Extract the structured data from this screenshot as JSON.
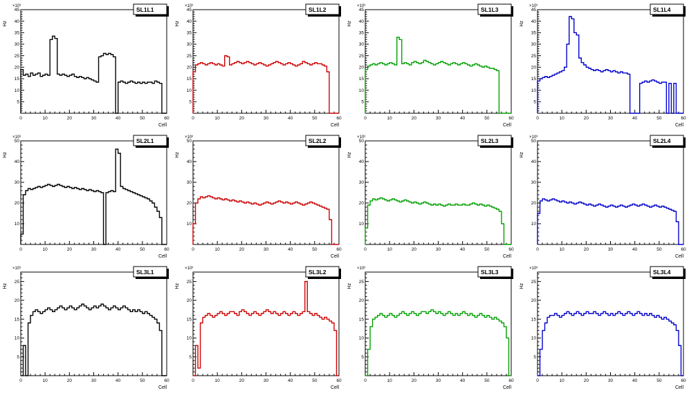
{
  "page": {
    "background": "#ffffff",
    "grid": {
      "rows": 3,
      "cols": 4
    }
  },
  "axis_labels": {
    "y_unit": "Hz",
    "x_unit": "Cell",
    "scale": "×10³"
  },
  "chart_data": [
    {
      "type": "line",
      "title": "SL1L1",
      "color": "#000000",
      "xlabel": "Cell",
      "ylabel": "Hz",
      "scale_label": "×10³",
      "xlim": [
        0,
        60
      ],
      "ylim": [
        0,
        45
      ],
      "xtick_step": 10,
      "x_minor_step": 2,
      "ytick_step": 5,
      "bins": [
        19,
        16.5,
        17,
        16,
        17.5,
        16.5,
        17,
        17.5,
        16,
        16.5,
        17,
        16.5,
        32,
        33.5,
        32.5,
        17,
        16.5,
        17,
        16.5,
        16,
        16.5,
        17,
        16,
        15.5,
        16,
        15.5,
        15,
        15.5,
        15,
        14.5,
        14,
        13.5,
        24.5,
        25,
        26,
        25.5,
        26,
        25.5,
        24.5,
        0,
        13.5,
        14,
        13.5,
        13,
        13.5,
        14,
        13.5,
        13,
        13.5,
        13,
        13.5,
        13,
        13.5,
        13.5,
        13,
        14,
        13.5,
        13,
        0,
        0
      ]
    },
    {
      "type": "line",
      "title": "SL1L2",
      "color": "#cc0000",
      "xlabel": "Cell",
      "ylabel": "Hz",
      "scale_label": "×10³",
      "xlim": [
        0,
        60
      ],
      "ylim": [
        0,
        45
      ],
      "xtick_step": 10,
      "x_minor_step": 2,
      "ytick_step": 5,
      "bins": [
        18,
        21,
        21.5,
        22,
        21.5,
        21,
        21.5,
        22,
        21.5,
        21,
        21.5,
        21,
        20.5,
        25,
        24.5,
        21,
        21.5,
        22,
        22.5,
        22,
        21.5,
        22,
        22.5,
        22,
        21.5,
        21,
        21.5,
        22,
        21.5,
        21,
        20.5,
        21,
        21.5,
        22,
        22.5,
        22,
        21.5,
        21,
        21.5,
        22,
        21.5,
        21,
        20.5,
        21,
        21.5,
        22.5,
        22,
        21.5,
        21,
        21.5,
        22,
        21.5,
        21.5,
        21,
        20.5,
        18,
        0,
        0,
        0,
        0
      ]
    },
    {
      "type": "line",
      "title": "SL1L3",
      "color": "#00a000",
      "xlabel": "Cell",
      "ylabel": "Hz",
      "scale_label": "×10³",
      "xlim": [
        0,
        60
      ],
      "ylim": [
        0,
        45
      ],
      "xtick_step": 10,
      "x_minor_step": 2,
      "ytick_step": 5,
      "bins": [
        19,
        20.5,
        21,
        21.5,
        21,
        21.5,
        22,
        21.5,
        21,
        21.5,
        22,
        21.5,
        21,
        33,
        32,
        21.5,
        22,
        21.5,
        21,
        22,
        22.5,
        22,
        21.5,
        22,
        23,
        22.5,
        22,
        21.5,
        21,
        21.5,
        22,
        22.5,
        22,
        21.5,
        21,
        21.5,
        22,
        21.5,
        21,
        21.5,
        22,
        21.5,
        21,
        20.5,
        21,
        21.5,
        21,
        20.5,
        20,
        20.5,
        20,
        19.5,
        19.5,
        19,
        18.5,
        0,
        0,
        0,
        0,
        0
      ]
    },
    {
      "type": "line",
      "title": "SL1L4",
      "color": "#0000cc",
      "xlabel": "Cell",
      "ylabel": "Hz",
      "scale_label": "×10³",
      "xlim": [
        0,
        60
      ],
      "ylim": [
        0,
        45
      ],
      "xtick_step": 10,
      "x_minor_step": 2,
      "ytick_step": 5,
      "bins": [
        14,
        15,
        15.5,
        16,
        15.5,
        16,
        16.5,
        17,
        17.5,
        18,
        18.5,
        20,
        30,
        42,
        41,
        35,
        34,
        24,
        22,
        21,
        20,
        19.5,
        19,
        18.5,
        19,
        18.5,
        18,
        18.5,
        19,
        18.5,
        18,
        18.5,
        18,
        17.5,
        18,
        17.5,
        17.5,
        17,
        0,
        0,
        0,
        0,
        13,
        13.5,
        14,
        13.5,
        14,
        14.5,
        14,
        13.5,
        13,
        13.5,
        13.5,
        0,
        13,
        0,
        13,
        0,
        0,
        0
      ]
    },
    {
      "type": "line",
      "title": "SL2L1",
      "color": "#000000",
      "xlabel": "Cell",
      "ylabel": "Hz",
      "scale_label": "×10³",
      "xlim": [
        0,
        60
      ],
      "ylim": [
        0,
        50
      ],
      "xtick_step": 10,
      "x_minor_step": 2,
      "ytick_step": 10,
      "bins": [
        5,
        24,
        26,
        27,
        26.5,
        27,
        27.5,
        28,
        27.5,
        28,
        28.5,
        29,
        28.5,
        28,
        28.5,
        29,
        28.5,
        28,
        27.5,
        28,
        27.5,
        27,
        27.5,
        27,
        26.5,
        27,
        26.5,
        26,
        26.5,
        26,
        25.5,
        26,
        25.5,
        25,
        0,
        25,
        25.5,
        26,
        25.5,
        46,
        44,
        28,
        27,
        26.5,
        26,
        25.5,
        25,
        24.5,
        24,
        23.5,
        23,
        22.5,
        22,
        21,
        20,
        18,
        16,
        13,
        0,
        0
      ]
    },
    {
      "type": "line",
      "title": "SL2L2",
      "color": "#cc0000",
      "xlabel": "Cell",
      "ylabel": "Hz",
      "scale_label": "×10³",
      "xlim": [
        0,
        60
      ],
      "ylim": [
        0,
        50
      ],
      "xtick_step": 10,
      "x_minor_step": 2,
      "ytick_step": 10,
      "bins": [
        10,
        20,
        22,
        23,
        22.5,
        23,
        23.5,
        23,
        22.5,
        22,
        22.5,
        22,
        21.5,
        22,
        21.5,
        21,
        21.5,
        21,
        20.5,
        21,
        20.5,
        20,
        20.5,
        20,
        19.5,
        20,
        19.5,
        19,
        19.5,
        20,
        20.5,
        20,
        19.5,
        20,
        20.5,
        21,
        20.5,
        20,
        20.5,
        20,
        19.5,
        20,
        20.5,
        20,
        19.5,
        19,
        19.5,
        20,
        20.5,
        20,
        19.5,
        19,
        18.5,
        18,
        17.5,
        17,
        12,
        0,
        0,
        0
      ]
    },
    {
      "type": "line",
      "title": "SL2L3",
      "color": "#00a000",
      "xlabel": "Cell",
      "ylabel": "Hz",
      "scale_label": "×10³",
      "xlim": [
        0,
        60
      ],
      "ylim": [
        0,
        50
      ],
      "xtick_step": 10,
      "x_minor_step": 2,
      "ytick_step": 10,
      "bins": [
        8,
        19,
        21,
        22,
        21.5,
        22,
        22.5,
        22,
        21.5,
        21,
        21.5,
        22,
        21.5,
        21,
        20.5,
        21,
        21.5,
        21,
        20.5,
        20,
        20.5,
        20,
        19.5,
        20,
        20.5,
        20,
        19.5,
        19,
        19.5,
        19,
        19.5,
        19,
        18.5,
        19,
        19.5,
        19,
        19,
        19.5,
        19,
        19,
        19.5,
        19,
        19,
        19.5,
        20,
        19.5,
        19,
        19.5,
        19,
        18.5,
        19,
        18.5,
        18,
        17.5,
        17,
        16,
        10,
        0,
        0,
        0
      ]
    },
    {
      "type": "line",
      "title": "SL2L4",
      "color": "#0000cc",
      "xlabel": "Cell",
      "ylabel": "Hz",
      "scale_label": "×10³",
      "xlim": [
        0,
        60
      ],
      "ylim": [
        0,
        50
      ],
      "xtick_step": 10,
      "x_minor_step": 2,
      "ytick_step": 10,
      "bins": [
        15,
        21,
        22,
        21.5,
        21,
        21.5,
        22,
        21.5,
        21,
        20.5,
        21,
        20.5,
        20,
        20.5,
        20,
        19.5,
        20,
        20.5,
        20,
        19.5,
        19,
        19.5,
        19,
        18.5,
        19,
        19.5,
        19,
        18.5,
        18,
        18.5,
        19,
        18.5,
        18,
        18.5,
        19,
        18.5,
        18,
        18.5,
        19,
        19.5,
        19,
        18.5,
        19,
        19.5,
        19,
        18.5,
        18,
        18.5,
        19,
        18.5,
        18,
        18.5,
        18,
        17.5,
        17,
        16.5,
        16,
        11,
        0,
        0
      ]
    },
    {
      "type": "line",
      "title": "SL3L1",
      "color": "#000000",
      "xlabel": "Cell",
      "ylabel": "Hz",
      "scale_label": "×10³",
      "xlim": [
        0,
        60
      ],
      "ylim": [
        0,
        27.5
      ],
      "xtick_step": 10,
      "x_minor_step": 2,
      "ytick_step": 5,
      "bins": [
        0,
        8,
        0,
        14,
        16,
        17,
        17.5,
        17,
        16.5,
        17,
        17.5,
        18,
        17.5,
        17,
        17.5,
        18,
        18.5,
        18,
        17.5,
        18,
        18.5,
        18,
        17.5,
        18,
        18.5,
        19,
        18.5,
        18,
        17.5,
        18,
        18.5,
        18,
        18.5,
        19,
        18.5,
        18,
        17.5,
        18,
        18.5,
        18,
        17.5,
        18,
        18.5,
        18,
        17.5,
        17,
        17.5,
        17,
        17.5,
        17,
        16.5,
        17,
        16.5,
        16,
        15.5,
        15,
        14,
        12,
        0,
        0
      ]
    },
    {
      "type": "line",
      "title": "SL3L2",
      "color": "#cc0000",
      "xlabel": "Cell",
      "ylabel": "Hz",
      "scale_label": "×10³",
      "xlim": [
        0,
        60
      ],
      "ylim": [
        0,
        27.5
      ],
      "xtick_step": 10,
      "x_minor_step": 2,
      "ytick_step": 5,
      "bins": [
        0,
        8,
        2,
        14,
        15.5,
        16,
        16.5,
        16,
        15.5,
        16,
        16.5,
        17,
        16.5,
        16,
        16.5,
        17,
        17,
        16.5,
        16,
        17,
        17.5,
        17,
        16.5,
        16,
        16.5,
        17,
        16.5,
        16,
        16.5,
        17,
        17.5,
        17,
        16.5,
        17,
        16.5,
        16,
        16.5,
        17,
        16.5,
        16,
        16.5,
        17,
        16.5,
        16,
        16.5,
        17,
        25,
        17,
        16.5,
        16,
        16.5,
        16,
        15.5,
        15,
        15.5,
        15,
        14.5,
        14,
        12,
        0
      ]
    },
    {
      "type": "line",
      "title": "SL3L3",
      "color": "#00a000",
      "xlabel": "Cell",
      "ylabel": "Hz",
      "scale_label": "×10³",
      "xlim": [
        0,
        60
      ],
      "ylim": [
        0,
        27.5
      ],
      "xtick_step": 10,
      "x_minor_step": 2,
      "ytick_step": 5,
      "bins": [
        0,
        7,
        13,
        15,
        15.5,
        16,
        16.5,
        16,
        15.5,
        16,
        16.5,
        16,
        15.5,
        16,
        16.5,
        17,
        16.5,
        16,
        16.5,
        17,
        16.5,
        16,
        16.5,
        17,
        17,
        16.5,
        17,
        17.5,
        17,
        16.5,
        17,
        16.5,
        16,
        16.5,
        17,
        16.5,
        16,
        16.5,
        16,
        16.5,
        17,
        16.5,
        16,
        16.5,
        16,
        15.5,
        16,
        16.5,
        16,
        15.5,
        16,
        15.5,
        15,
        15.5,
        15,
        14.5,
        14,
        13,
        10,
        0
      ]
    },
    {
      "type": "line",
      "title": "SL3L4",
      "color": "#0000cc",
      "xlabel": "Cell",
      "ylabel": "Hz",
      "scale_label": "×10³",
      "xlim": [
        0,
        60
      ],
      "ylim": [
        0,
        27.5
      ],
      "xtick_step": 10,
      "x_minor_step": 2,
      "ytick_step": 5,
      "bins": [
        0,
        7,
        12,
        14,
        15.5,
        16,
        16,
        16.5,
        16,
        15.5,
        16,
        16.5,
        17,
        16.5,
        16,
        16.5,
        17,
        16.5,
        16,
        16.5,
        17,
        16.5,
        16.5,
        17,
        16.5,
        16,
        16.5,
        17,
        16.5,
        16,
        16.5,
        16,
        16.5,
        17,
        16.5,
        16,
        16.5,
        17,
        16.5,
        16,
        16.5,
        17,
        16.5,
        16,
        16.5,
        16,
        16.5,
        16,
        15.5,
        16,
        15.5,
        15,
        15.5,
        15,
        14.5,
        14,
        13.5,
        12,
        8,
        0
      ]
    }
  ]
}
